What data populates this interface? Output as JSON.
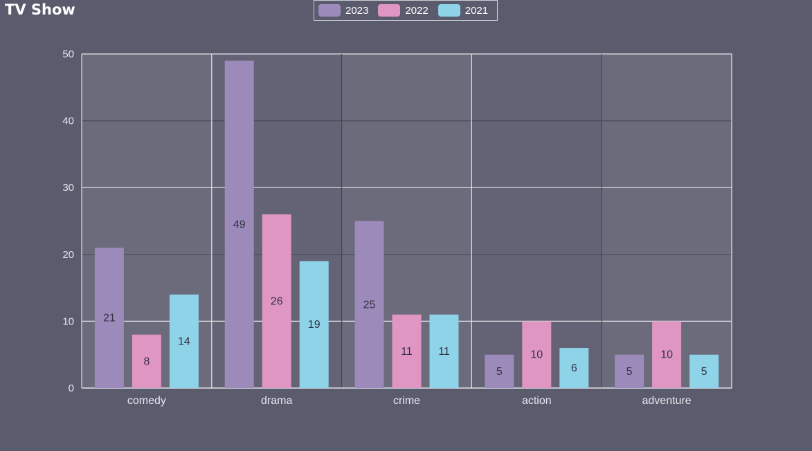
{
  "chart_data": {
    "type": "bar",
    "title": "TV Show",
    "categories": [
      "comedy",
      "drama",
      "crime",
      "action",
      "adventure"
    ],
    "series": [
      {
        "name": "2023",
        "color": "#9c8abb",
        "values": [
          21,
          49,
          25,
          5,
          5
        ]
      },
      {
        "name": "2022",
        "color": "#e096c3",
        "values": [
          8,
          26,
          11,
          10,
          10
        ]
      },
      {
        "name": "2021",
        "color": "#8ed3e8",
        "values": [
          14,
          19,
          11,
          6,
          5
        ]
      }
    ],
    "ylim": [
      0,
      50
    ],
    "yticks": [
      0,
      10,
      20,
      30,
      40,
      50
    ],
    "grid": true,
    "legend_position": "top-center",
    "xlabel": "",
    "ylabel": ""
  }
}
